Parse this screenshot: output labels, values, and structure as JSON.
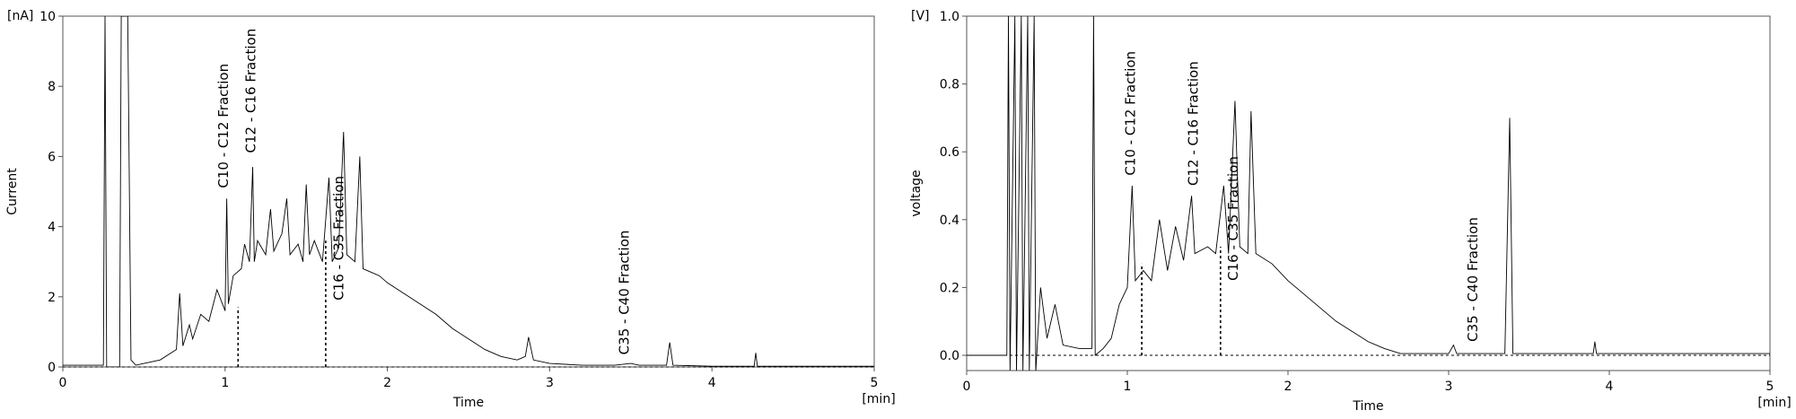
{
  "chart_data": [
    {
      "type": "line",
      "xlabel": "Time",
      "x_unit": "[min]",
      "ylabel": "Current",
      "y_unit": "[nA]",
      "xlim": [
        0,
        5
      ],
      "xticks": [
        0,
        1,
        2,
        3,
        4,
        5
      ],
      "ylim": [
        0,
        10
      ],
      "yticks": [
        0,
        2,
        4,
        6,
        8,
        10
      ],
      "series": [
        {
          "color": "#000000",
          "x": [
            0,
            0.25,
            0.26,
            0.27,
            0.35,
            0.36,
            0.38,
            0.4,
            0.42,
            0.45,
            0.5,
            0.6,
            0.7,
            0.72,
            0.74,
            0.78,
            0.8,
            0.85,
            0.9,
            0.95,
            1.0,
            1.01,
            1.02,
            1.05,
            1.1,
            1.12,
            1.15,
            1.17,
            1.18,
            1.2,
            1.25,
            1.28,
            1.3,
            1.35,
            1.38,
            1.4,
            1.45,
            1.48,
            1.5,
            1.52,
            1.55,
            1.6,
            1.64,
            1.66,
            1.7,
            1.73,
            1.75,
            1.8,
            1.83,
            1.85,
            1.9,
            1.95,
            2.0,
            2.1,
            2.2,
            2.3,
            2.4,
            2.5,
            2.6,
            2.7,
            2.8,
            2.85,
            2.87,
            2.9,
            3.0,
            3.2,
            3.4,
            3.5,
            3.55,
            3.72,
            3.74,
            3.76,
            4.0,
            4.26,
            4.27,
            4.28,
            5.0
          ],
          "values": [
            0.05,
            0.05,
            10,
            0,
            0,
            10,
            10,
            10,
            0.2,
            0.05,
            0.1,
            0.2,
            0.5,
            2.1,
            0.6,
            1.2,
            0.8,
            1.5,
            1.3,
            2.2,
            1.6,
            4.8,
            1.8,
            2.6,
            2.8,
            3.5,
            3.0,
            5.7,
            3.0,
            3.6,
            3.2,
            4.5,
            3.3,
            3.8,
            4.8,
            3.2,
            3.5,
            3.0,
            5.2,
            3.2,
            3.6,
            3.0,
            5.4,
            3.0,
            3.4,
            6.7,
            3.2,
            3.0,
            6.0,
            2.8,
            2.7,
            2.6,
            2.4,
            2.1,
            1.8,
            1.5,
            1.1,
            0.8,
            0.5,
            0.3,
            0.2,
            0.3,
            0.85,
            0.2,
            0.1,
            0.05,
            0.05,
            0.1,
            0.05,
            0.05,
            0.7,
            0.05,
            0.02,
            0.02,
            0.4,
            0.02,
            0.02
          ]
        }
      ],
      "dividers": [
        {
          "x": 1.08,
          "y": 1.7
        },
        {
          "x": 1.62,
          "y": 3.6
        }
      ],
      "annotations": [
        {
          "text": "C10 - C12 Fraction",
          "x": 0.99,
          "y": 5.1
        },
        {
          "text": "C12 - C16 Fraction",
          "x": 1.16,
          "y": 6.1
        },
        {
          "text": "C16 - C35 Fraction",
          "x": 1.7,
          "y": 1.9
        },
        {
          "text": "C35 - C40 Fraction",
          "x": 3.46,
          "y": 0.35
        }
      ]
    },
    {
      "type": "line",
      "xlabel": "Time",
      "x_unit": "[min]",
      "ylabel": "voltage",
      "y_unit": "[V]",
      "xlim": [
        0,
        5
      ],
      "xticks": [
        0,
        1,
        2,
        3,
        4,
        5
      ],
      "ylim": [
        -0.045,
        1.0
      ],
      "yticks": [
        {
          "value": 0,
          "label": "0.0"
        },
        0.2,
        0.4,
        0.6,
        0.8,
        {
          "value": 1,
          "label": "1.0"
        }
      ],
      "series": [
        {
          "color": "#000000",
          "x": [
            0,
            0.25,
            0.26,
            0.27,
            0.3,
            0.31,
            0.34,
            0.35,
            0.38,
            0.39,
            0.42,
            0.43,
            0.46,
            0.5,
            0.55,
            0.6,
            0.7,
            0.78,
            0.79,
            0.8,
            0.85,
            0.9,
            0.95,
            1.0,
            1.03,
            1.05,
            1.1,
            1.15,
            1.2,
            1.25,
            1.3,
            1.35,
            1.4,
            1.42,
            1.5,
            1.55,
            1.6,
            1.63,
            1.67,
            1.7,
            1.75,
            1.77,
            1.8,
            1.9,
            2.0,
            2.1,
            2.2,
            2.3,
            2.4,
            2.5,
            2.6,
            2.7,
            3.0,
            3.03,
            3.05,
            3.35,
            3.38,
            3.4,
            3.9,
            3.91,
            3.92,
            5.0
          ],
          "values": [
            0,
            0,
            1.0,
            -0.05,
            1.0,
            -0.05,
            1.0,
            -0.05,
            1.0,
            -0.05,
            1.0,
            -0.05,
            0.2,
            0.05,
            0.15,
            0.03,
            0.02,
            0.02,
            1.0,
            0.0,
            0.02,
            0.05,
            0.15,
            0.2,
            0.5,
            0.22,
            0.25,
            0.22,
            0.4,
            0.25,
            0.38,
            0.28,
            0.47,
            0.3,
            0.32,
            0.3,
            0.5,
            0.3,
            0.75,
            0.32,
            0.3,
            0.72,
            0.3,
            0.27,
            0.22,
            0.18,
            0.14,
            0.1,
            0.07,
            0.04,
            0.02,
            0.005,
            0.005,
            0.03,
            0.005,
            0.005,
            0.7,
            0.005,
            0.005,
            0.04,
            0.005,
            0.005
          ]
        }
      ],
      "dividers": [
        {
          "x": 1.09,
          "y": 0.27
        },
        {
          "x": 1.58,
          "y": 0.32
        }
      ],
      "annotations": [
        {
          "text": "C10 - C12 Fraction",
          "x": 1.02,
          "y": 0.53
        },
        {
          "text": "C12 - C16 Fraction",
          "x": 1.41,
          "y": 0.5
        },
        {
          "text": "C16 - C35 Fraction",
          "x": 1.66,
          "y": 0.22
        },
        {
          "text": "C35 - C40 Fraction",
          "x": 3.15,
          "y": 0.04
        }
      ]
    }
  ]
}
